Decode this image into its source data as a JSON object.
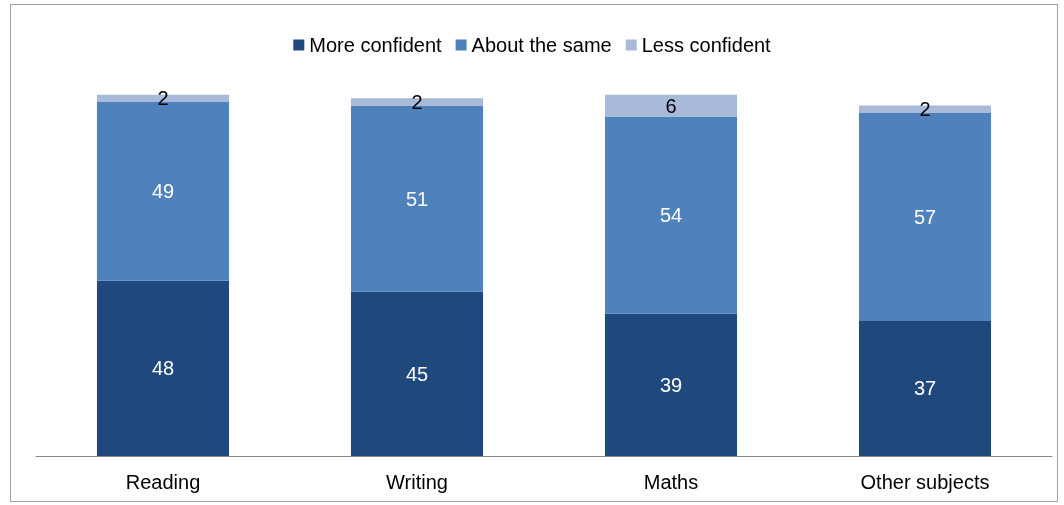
{
  "chart_data": {
    "type": "bar",
    "stacked": true,
    "categories": [
      "Reading",
      "Writing",
      "Maths",
      "Other subjects"
    ],
    "series": [
      {
        "name": "More confident",
        "color": "#1f497d",
        "values": [
          48,
          45,
          39,
          37
        ]
      },
      {
        "name": "About the same",
        "color": "#4f81bd",
        "values": [
          49,
          51,
          54,
          57
        ]
      },
      {
        "name": "Less confident",
        "color": "#a9b9d9",
        "values": [
          2,
          2,
          6,
          2
        ]
      }
    ],
    "ylim": [
      0,
      100
    ],
    "data_labels": true,
    "legend": "top",
    "tick_labels": "x"
  }
}
